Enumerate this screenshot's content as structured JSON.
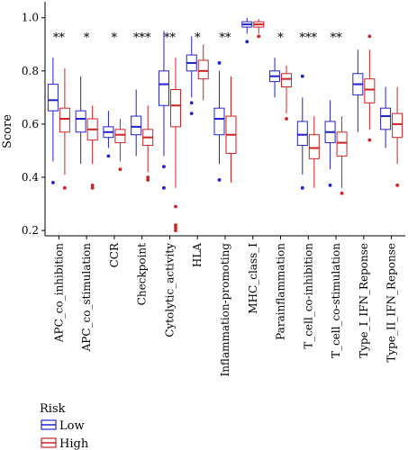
{
  "chart_data": {
    "type": "boxplot",
    "ylabel": "Score",
    "ylim": [
      0.18,
      1.06
    ],
    "yticks": [
      0.2,
      0.4,
      0.6,
      0.8,
      1.0
    ],
    "ytick_labels": [
      "0.2",
      "0.4",
      "0.6",
      "0.8",
      "1.0"
    ],
    "categories": [
      "APC_co_inhibition",
      "APC_co_stimulation",
      "CCR",
      "Checkpoint",
      "Cytolytic_activity",
      "HLA",
      "Inflammation-promoting",
      "MHC_class_I",
      "Parainflammation",
      "T_cell_co-inhibition",
      "T_cell_co-stimulation",
      "Type_I_IFN_Reponse",
      "Type_II_IFN_Reponse"
    ],
    "significance": [
      "**",
      "*",
      "*",
      "***",
      "**",
      "*",
      "**",
      "",
      "*",
      "***",
      "**",
      "",
      ""
    ],
    "legend": {
      "title": "Risk",
      "entries": [
        "Low",
        "High"
      ],
      "placement": "bottom-left"
    },
    "series": [
      {
        "name": "Low",
        "color": "#2222cc",
        "boxes": [
          {
            "whislo": 0.46,
            "q1": 0.65,
            "med": 0.69,
            "q3": 0.75,
            "whishi": 0.85,
            "fliers": [
              0.38
            ]
          },
          {
            "whislo": 0.45,
            "q1": 0.57,
            "med": 0.62,
            "q3": 0.65,
            "whishi": 0.78,
            "fliers": []
          },
          {
            "whislo": 0.51,
            "q1": 0.55,
            "med": 0.57,
            "q3": 0.59,
            "whishi": 0.65,
            "fliers": [
              0.48
            ]
          },
          {
            "whislo": 0.48,
            "q1": 0.56,
            "med": 0.59,
            "q3": 0.63,
            "whishi": 0.73,
            "fliers": []
          },
          {
            "whislo": 0.48,
            "q1": 0.67,
            "med": 0.75,
            "q3": 0.8,
            "whishi": 0.95,
            "fliers": [
              0.44,
              0.36
            ]
          },
          {
            "whislo": 0.7,
            "q1": 0.8,
            "med": 0.83,
            "q3": 0.86,
            "whishi": 0.93,
            "fliers": [
              0.68,
              0.64
            ]
          },
          {
            "whislo": 0.45,
            "q1": 0.56,
            "med": 0.62,
            "q3": 0.66,
            "whishi": 0.8,
            "fliers": [
              0.83,
              0.39
            ]
          },
          {
            "whislo": 0.94,
            "q1": 0.965,
            "med": 0.975,
            "q3": 0.985,
            "whishi": 1.0,
            "fliers": [
              0.91
            ]
          },
          {
            "whislo": 0.7,
            "q1": 0.76,
            "med": 0.78,
            "q3": 0.8,
            "whishi": 0.85,
            "fliers": []
          },
          {
            "whislo": 0.41,
            "q1": 0.52,
            "med": 0.56,
            "q3": 0.61,
            "whishi": 0.7,
            "fliers": [
              0.78,
              0.36
            ]
          },
          {
            "whislo": 0.43,
            "q1": 0.53,
            "med": 0.57,
            "q3": 0.61,
            "whishi": 0.69,
            "fliers": [
              0.37
            ]
          },
          {
            "whislo": 0.57,
            "q1": 0.71,
            "med": 0.75,
            "q3": 0.79,
            "whishi": 0.88,
            "fliers": []
          },
          {
            "whislo": 0.51,
            "q1": 0.58,
            "med": 0.63,
            "q3": 0.66,
            "whishi": 0.74,
            "fliers": []
          }
        ]
      },
      {
        "name": "High",
        "color": "#cc2222",
        "boxes": [
          {
            "whislo": 0.41,
            "q1": 0.57,
            "med": 0.62,
            "q3": 0.66,
            "whishi": 0.81,
            "fliers": [
              0.36
            ]
          },
          {
            "whislo": 0.45,
            "q1": 0.54,
            "med": 0.58,
            "q3": 0.62,
            "whishi": 0.67,
            "fliers": [
              0.37,
              0.36
            ]
          },
          {
            "whislo": 0.46,
            "q1": 0.53,
            "med": 0.56,
            "q3": 0.58,
            "whishi": 0.62,
            "fliers": [
              0.43
            ]
          },
          {
            "whislo": 0.42,
            "q1": 0.52,
            "med": 0.55,
            "q3": 0.58,
            "whishi": 0.67,
            "fliers": [
              0.4,
              0.39
            ]
          },
          {
            "whislo": 0.36,
            "q1": 0.59,
            "med": 0.67,
            "q3": 0.73,
            "whishi": 0.85,
            "fliers": [
              0.29,
              0.22,
              0.21,
              0.2
            ]
          },
          {
            "whislo": 0.69,
            "q1": 0.77,
            "med": 0.8,
            "q3": 0.84,
            "whishi": 0.9,
            "fliers": []
          },
          {
            "whislo": 0.38,
            "q1": 0.49,
            "med": 0.56,
            "q3": 0.63,
            "whishi": 0.78,
            "fliers": []
          },
          {
            "whislo": 0.94,
            "q1": 0.965,
            "med": 0.975,
            "q3": 0.985,
            "whishi": 0.995,
            "fliers": [
              0.93
            ]
          },
          {
            "whislo": 0.64,
            "q1": 0.74,
            "med": 0.77,
            "q3": 0.79,
            "whishi": 0.82,
            "fliers": [
              0.62
            ]
          },
          {
            "whislo": 0.36,
            "q1": 0.47,
            "med": 0.51,
            "q3": 0.56,
            "whishi": 0.63,
            "fliers": []
          },
          {
            "whislo": 0.36,
            "q1": 0.48,
            "med": 0.53,
            "q3": 0.57,
            "whishi": 0.63,
            "fliers": [
              0.34
            ]
          },
          {
            "whislo": 0.58,
            "q1": 0.68,
            "med": 0.73,
            "q3": 0.77,
            "whishi": 0.88,
            "fliers": [
              0.93,
              0.54
            ]
          },
          {
            "whislo": 0.45,
            "q1": 0.55,
            "med": 0.6,
            "q3": 0.64,
            "whishi": 0.74,
            "fliers": [
              0.37
            ]
          }
        ]
      }
    ]
  }
}
